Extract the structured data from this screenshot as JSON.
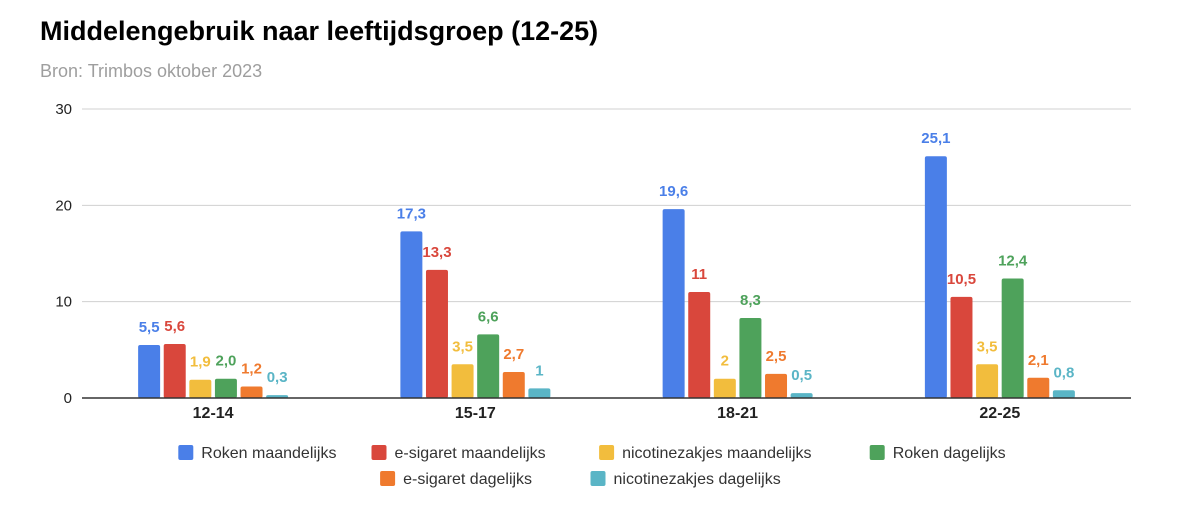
{
  "chart_data": {
    "type": "bar",
    "title": "Middelengebruik naar leeftijdsgroep (12-25)",
    "subtitle": "Bron: Trimbos oktober 2023",
    "categories": [
      "12-14",
      "15-17",
      "18-21",
      "22-25"
    ],
    "ylim": [
      0,
      30
    ],
    "yticks": [
      0,
      10,
      20,
      30
    ],
    "grid": true,
    "legend_position": "bottom",
    "series": [
      {
        "name": "Roken maandelijks",
        "color": "#4a7fe8",
        "values": [
          5.5,
          17.3,
          19.6,
          25.1
        ],
        "labels": [
          "5,5",
          "17,3",
          "19,6",
          "25,1"
        ]
      },
      {
        "name": "e-sigaret maandelijks",
        "color": "#d9473c",
        "values": [
          5.6,
          13.3,
          11,
          10.5
        ],
        "labels": [
          "5,6",
          "13,3",
          "11",
          "10,5"
        ]
      },
      {
        "name": "nicotinezakjes maandelijks",
        "color": "#f2bd3d",
        "values": [
          1.9,
          3.5,
          2,
          3.5
        ],
        "labels": [
          "1,9",
          "3,5",
          "2",
          "3,5"
        ]
      },
      {
        "name": "Roken dagelijks",
        "color": "#4ea25b",
        "values": [
          2.0,
          6.6,
          8.3,
          12.4
        ],
        "labels": [
          "2,0",
          "6,6",
          "8,3",
          "12,4"
        ]
      },
      {
        "name": "e-sigaret dagelijks",
        "color": "#ef7a2e",
        "values": [
          1.2,
          2.7,
          2.5,
          2.1
        ],
        "labels": [
          "1,2",
          "2,7",
          "2,5",
          "2,1"
        ]
      },
      {
        "name": "nicotinezakjes dagelijks",
        "color": "#5ab5c6",
        "values": [
          0.3,
          1,
          0.5,
          0.8
        ],
        "labels": [
          "0,3",
          "1",
          "0,5",
          "0,8"
        ]
      }
    ]
  }
}
